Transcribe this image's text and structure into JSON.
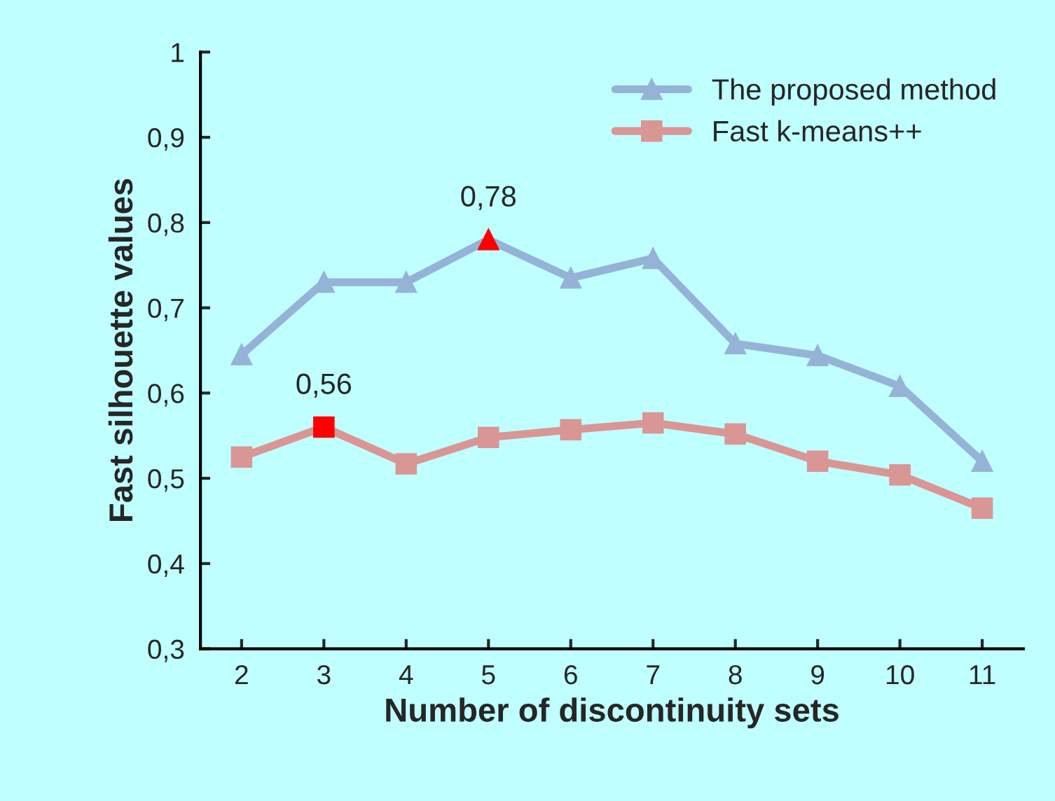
{
  "chart_data": {
    "type": "line",
    "xlabel": "Number of discontinuity sets",
    "ylabel": "Fast silhouette values",
    "categories": [
      "2",
      "3",
      "4",
      "5",
      "6",
      "7",
      "8",
      "9",
      "10",
      "11"
    ],
    "series": [
      {
        "name": "The proposed method",
        "color": "#95b3d7",
        "marker": "triangle",
        "values": [
          0.645,
          0.73,
          0.73,
          0.78,
          0.735,
          0.758,
          0.658,
          0.644,
          0.608,
          0.52
        ],
        "colors": [
          "#95b3d7",
          "#95b3d7",
          "#95b3d7",
          "#ff0000",
          "#95b3d7",
          "#95b3d7",
          "#95b3d7",
          "#95b3d7",
          "#95b3d7",
          "#95b3d7"
        ],
        "value_labels": [
          null,
          null,
          null,
          "0,78",
          null,
          null,
          null,
          null,
          null,
          null
        ]
      },
      {
        "name": "Fast k-means++",
        "color": "#d99694",
        "marker": "square",
        "values": [
          0.525,
          0.56,
          0.517,
          0.548,
          0.557,
          0.565,
          0.552,
          0.52,
          0.504,
          0.465
        ],
        "colors": [
          "#d99694",
          "#ff0000",
          "#d99694",
          "#d99694",
          "#d99694",
          "#d99694",
          "#d99694",
          "#d99694",
          "#d99694",
          "#d99694"
        ],
        "value_labels": [
          null,
          "0,56",
          null,
          null,
          null,
          null,
          null,
          null,
          null,
          null
        ]
      }
    ],
    "ylim": [
      0.3,
      1
    ],
    "yticks": [
      {
        "value": 0.3,
        "label": "0,3"
      },
      {
        "value": 0.4,
        "label": "0,4"
      },
      {
        "value": 0.5,
        "label": "0,5"
      },
      {
        "value": 0.6,
        "label": "0,6"
      },
      {
        "value": 0.7,
        "label": "0,7"
      },
      {
        "value": 0.8,
        "label": "0,8"
      },
      {
        "value": 0.9,
        "label": "0,9"
      },
      {
        "value": 1,
        "label": "1"
      }
    ],
    "grid": false,
    "legend": "top right",
    "line_style": "solid"
  }
}
